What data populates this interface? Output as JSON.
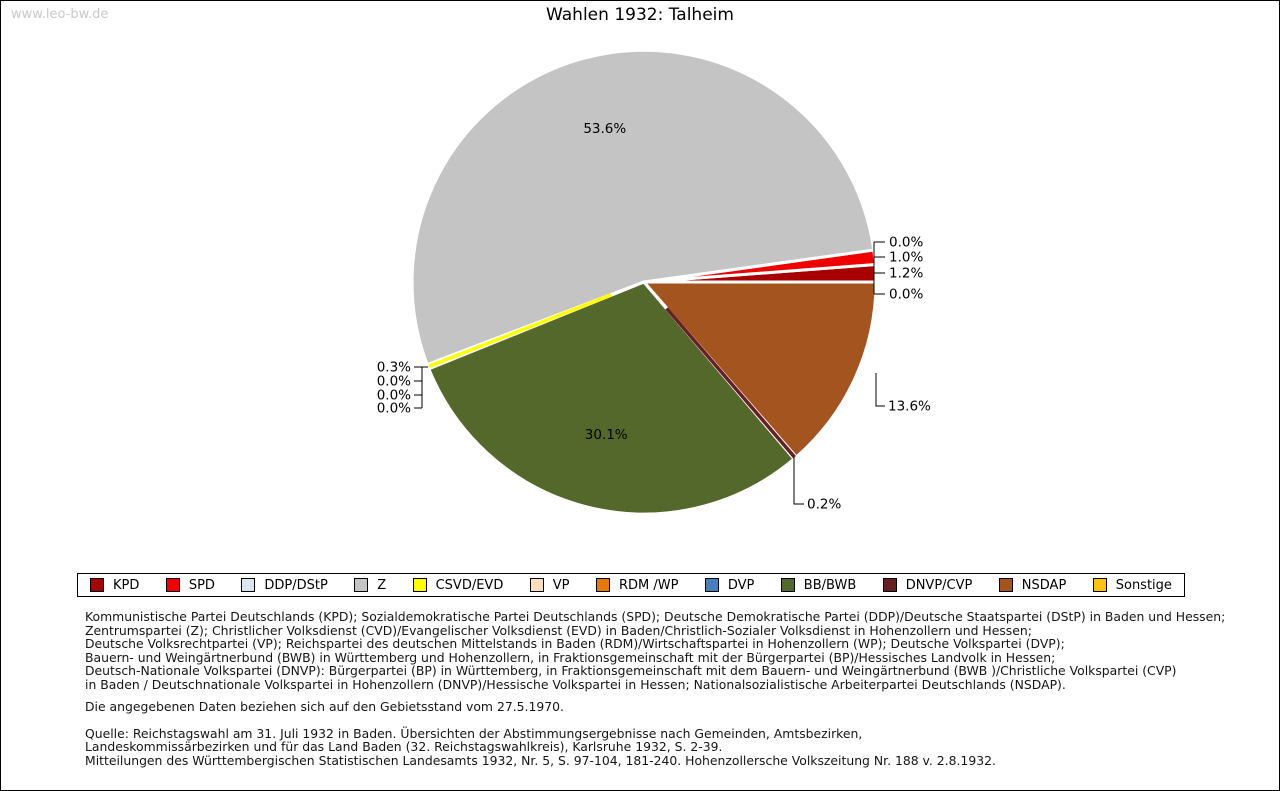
{
  "watermark": "www.leo-bw.de",
  "title": "Wahlen 1932: Talheim",
  "chart_data": {
    "type": "pie",
    "title": "Wahlen 1932: Talheim",
    "unit": "%",
    "start_angle_deg": 0,
    "direction": "counterclockwise",
    "legend_position": "bottom",
    "slices": [
      {
        "party": "KPD",
        "value": 1.2,
        "label": "1.2%",
        "color": "#a80000"
      },
      {
        "party": "SPD",
        "value": 1.0,
        "label": "1.0%",
        "color": "#ee0000"
      },
      {
        "party": "DDP/DStP",
        "value": 0.0,
        "label": "0.0%",
        "color": "#dce6f2"
      },
      {
        "party": "Z",
        "value": 53.6,
        "label": "53.6%",
        "color": "#c4c4c4"
      },
      {
        "party": "CSVD/EVD",
        "value": 0.3,
        "label": "0.3%",
        "color": "#ffff00"
      },
      {
        "party": "VP",
        "value": 0.0,
        "label": "0.0%",
        "color": "#fcdec0"
      },
      {
        "party": "RDM /WP",
        "value": 0.0,
        "label": "0.0%",
        "color": "#e8780a"
      },
      {
        "party": "DVP",
        "value": 0.0,
        "label": "0.0%",
        "color": "#4a7ebb"
      },
      {
        "party": "BB/BWB",
        "value": 30.1,
        "label": "30.1%",
        "color": "#55682c"
      },
      {
        "party": "DNVP/CVP",
        "value": 0.2,
        "label": "0.2%",
        "color": "#661f24"
      },
      {
        "party": "NSDAP",
        "value": 13.6,
        "label": "13.6%",
        "color": "#a4541e"
      },
      {
        "party": "Sonstige",
        "value": 0.0,
        "label": "0.0%",
        "color": "#ffc20e"
      }
    ]
  },
  "notes": {
    "party_explanations": [
      "Kommunistische Partei Deutschlands (KPD); Sozialdemokratische Partei Deutschlands (SPD); Deutsche Demokratische Partei (DDP)/Deutsche Staatspartei (DStP) in Baden und Hessen;",
      "Zentrumspartei (Z); Christlicher Volksdienst (CVD)/Evangelischer Volksdienst (EVD) in Baden/Christlich-Sozialer Volksdienst in Hohenzollern und Hessen;",
      "Deutsche Volksrechtpartei (VP); Reichspartei des deutschen Mittelstands in Baden (RDM)/Wirtschaftspartei in Hohenzollern (WP); Deutsche Volkspartei (DVP);",
      "Bauern- und Weingärtnerbund (BWB) in Württemberg und Hohenzollern, in Fraktionsgemeinschaft mit der Bürgerpartei (BP)/Hessisches Landvolk in Hessen;",
      "Deutsch-Nationale Volkspartei (DNVP): Bürgerpartei (BP) in Württemberg, in Fraktionsgemeinschaft mit dem Bauern- und Weingärtnerbund (BWB )/Christliche Volkspartei (CVP)",
      "in Baden / Deutschnationale Volkspartei in Hohenzollern (DNVP)/Hessische Volkspartei in Hessen; Nationalsozialistische Arbeiterpartei Deutschlands (NSDAP)."
    ],
    "territorial_note": "Die angegebenen Daten beziehen sich auf den Gebietsstand vom 27.5.1970.",
    "source_lines": [
      "Quelle: Reichstagswahl am 31. Juli 1932 in Baden. Übersichten der Abstimmungsergebnisse nach Gemeinden, Amtsbezirken,",
      "Landeskommissärbezirken und für das Land Baden (32. Reichstagswahlkreis), Karlsruhe 1932, S. 2-39.",
      "Mitteilungen des Württembergischen Statistischen Landesamts 1932, Nr. 5, S. 97-104, 181-240. Hohenzollersche Volkszeitung Nr. 188 v. 2.8.1932."
    ]
  }
}
